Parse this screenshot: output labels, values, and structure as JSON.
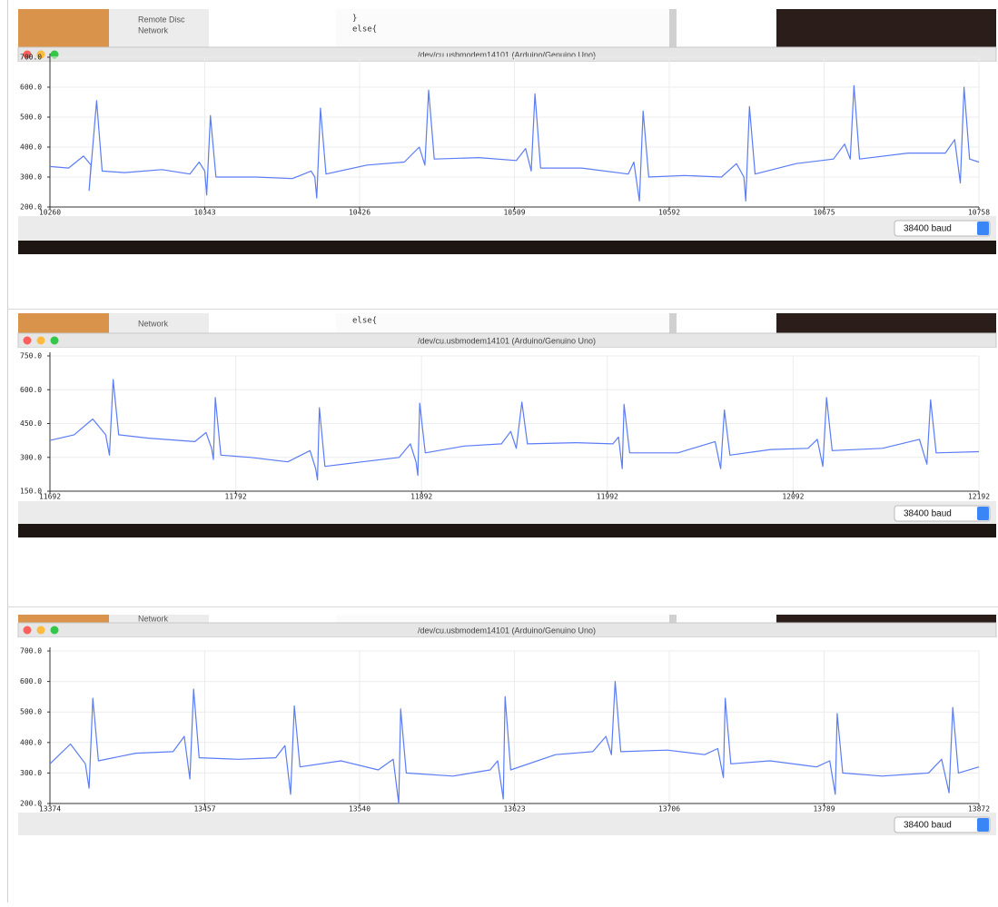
{
  "windows": [
    {
      "background_texts": [
        "Remote Disc",
        "Network",
        "}",
        "else{"
      ],
      "title": "/dev/cu.usbmodem14101 (Arduino/Genuino Uno)",
      "baud": "38400 baud",
      "chart_data": {
        "type": "line",
        "color": "#5b7cf5",
        "grid": true,
        "xlim": [
          10260,
          10758
        ],
        "xticks": [
          10260,
          10343,
          10426,
          10509,
          10592,
          10675,
          10758
        ],
        "ylim": [
          200,
          700
        ],
        "yticks": [
          {
            "value": 200,
            "label": "200.0"
          },
          {
            "value": 300,
            "label": "300.0"
          },
          {
            "value": 400,
            "label": "400.0"
          },
          {
            "value": 500,
            "label": "500.0"
          },
          {
            "value": 600,
            "label": "600.0"
          },
          {
            "value": 700,
            "label": "700.0"
          }
        ],
        "x": [
          10260,
          10270,
          10278,
          10282,
          10281,
          10285,
          10288,
          10300,
          10320,
          10335,
          10340,
          10343,
          10344,
          10346,
          10349,
          10370,
          10390,
          10400,
          10402,
          10403,
          10405,
          10408,
          10430,
          10450,
          10458,
          10461,
          10463,
          10466,
          10490,
          10510,
          10515,
          10518,
          10520,
          10523,
          10545,
          10570,
          10573,
          10576,
          10578,
          10581,
          10600,
          10620,
          10628,
          10632,
          10633,
          10635,
          10638,
          10660,
          10680,
          10686,
          10689,
          10691,
          10694,
          10720,
          10740,
          10745,
          10748,
          10750,
          10753,
          10758
        ],
        "values": [
          335,
          330,
          370,
          340,
          255,
          555,
          320,
          315,
          325,
          310,
          350,
          320,
          240,
          505,
          300,
          300,
          295,
          320,
          300,
          230,
          530,
          310,
          340,
          350,
          400,
          340,
          590,
          360,
          365,
          355,
          395,
          320,
          578,
          330,
          330,
          310,
          350,
          220,
          520,
          300,
          305,
          300,
          345,
          300,
          220,
          535,
          310,
          345,
          360,
          410,
          360,
          605,
          360,
          380,
          380,
          425,
          280,
          600,
          360,
          350
        ]
      }
    },
    {
      "background_texts": [
        "Network",
        "else{"
      ],
      "title": "/dev/cu.usbmodem14101 (Arduino/Genuino Uno)",
      "baud": "38400 baud",
      "chart_data": {
        "type": "line",
        "color": "#5b7cf5",
        "grid": true,
        "xlim": [
          11692,
          12192
        ],
        "xticks": [
          11692,
          11792,
          11892,
          11992,
          12092,
          12192
        ],
        "ylim": [
          150,
          750
        ],
        "yticks": [
          {
            "value": 150,
            "label": "150.0"
          },
          {
            "value": 300,
            "label": "300.0"
          },
          {
            "value": 450,
            "label": "450.0"
          },
          {
            "value": 600,
            "label": "600.0"
          },
          {
            "value": 750,
            "label": "750.0"
          }
        ],
        "x": [
          11692,
          11705,
          11715,
          11722,
          11724,
          11726,
          11729,
          11745,
          11770,
          11776,
          11779,
          11780,
          11781,
          11784,
          11800,
          11820,
          11832,
          11835,
          11836,
          11837,
          11840,
          11860,
          11880,
          11886,
          11889,
          11890,
          11891,
          11894,
          11915,
          11935,
          11940,
          11943,
          11946,
          11949,
          11975,
          11995,
          11998,
          12000,
          12001,
          12004,
          12030,
          12050,
          12053,
          12055,
          12058,
          12080,
          12100,
          12105,
          12108,
          12110,
          12113,
          12140,
          12160,
          12164,
          12166,
          12169,
          12192
        ],
        "values": [
          375,
          400,
          470,
          400,
          310,
          645,
          400,
          385,
          370,
          410,
          340,
          290,
          565,
          310,
          300,
          280,
          330,
          250,
          200,
          520,
          260,
          280,
          300,
          360,
          280,
          220,
          540,
          320,
          350,
          360,
          415,
          340,
          545,
          360,
          365,
          360,
          390,
          250,
          535,
          320,
          320,
          370,
          250,
          510,
          310,
          335,
          340,
          380,
          260,
          565,
          330,
          340,
          380,
          270,
          555,
          320,
          325
        ]
      }
    },
    {
      "background_texts": [
        "Network"
      ],
      "title": "/dev/cu.usbmodem14101 (Arduino/Genuino Uno)",
      "baud": "38400 baud",
      "chart_data": {
        "type": "line",
        "color": "#5b7cf5",
        "grid": true,
        "xlim": [
          13374,
          13872
        ],
        "xticks": [
          13374,
          13457,
          13540,
          13623,
          13706,
          13789,
          13872
        ],
        "ylim": [
          200,
          700
        ],
        "yticks": [
          {
            "value": 200,
            "label": "200.0"
          },
          {
            "value": 300,
            "label": "300.0"
          },
          {
            "value": 400,
            "label": "400.0"
          },
          {
            "value": 500,
            "label": "500.0"
          },
          {
            "value": 600,
            "label": "600.0"
          },
          {
            "value": 700,
            "label": "700.0"
          }
        ],
        "x": [
          13374,
          13385,
          13393,
          13395,
          13397,
          13400,
          13420,
          13440,
          13446,
          13449,
          13451,
          13454,
          13475,
          13495,
          13500,
          13503,
          13505,
          13508,
          13530,
          13550,
          13558,
          13561,
          13562,
          13565,
          13590,
          13610,
          13614,
          13617,
          13618,
          13621,
          13645,
          13665,
          13672,
          13675,
          13677,
          13680,
          13705,
          13725,
          13732,
          13735,
          13736,
          13739,
          13760,
          13785,
          13792,
          13795,
          13796,
          13799,
          13820,
          13845,
          13852,
          13856,
          13858,
          13861,
          13872
        ],
        "values": [
          330,
          395,
          330,
          250,
          545,
          340,
          365,
          370,
          420,
          280,
          575,
          350,
          345,
          350,
          390,
          230,
          520,
          320,
          340,
          310,
          345,
          200,
          510,
          300,
          290,
          310,
          340,
          215,
          550,
          310,
          360,
          370,
          420,
          360,
          600,
          370,
          375,
          360,
          380,
          285,
          545,
          330,
          340,
          320,
          340,
          230,
          495,
          300,
          290,
          300,
          345,
          235,
          515,
          300,
          320
        ]
      }
    }
  ]
}
